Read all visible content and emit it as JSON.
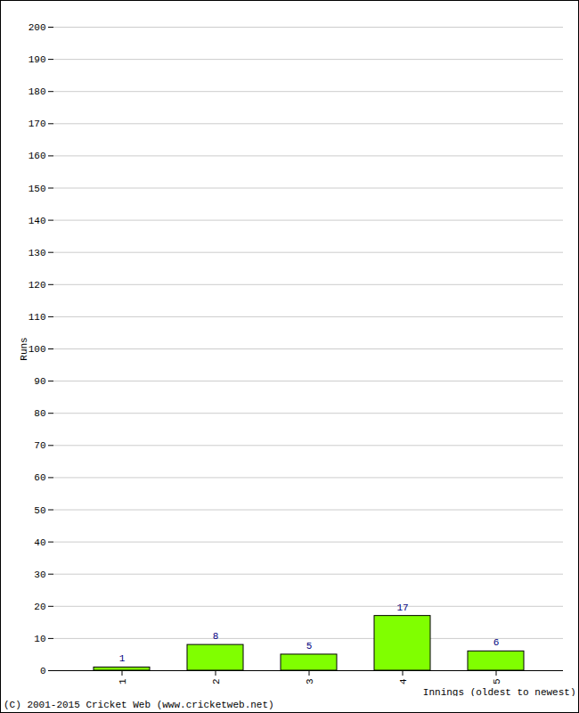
{
  "chart_data": {
    "type": "bar",
    "x_label": "Innings (oldest to newest)",
    "y_label": "Runs",
    "caption": "(C) 2001-2015 Cricket Web (www.cricketweb.net)",
    "categories": [
      "1",
      "2",
      "3",
      "4",
      "5"
    ],
    "values": [
      1,
      8,
      5,
      17,
      6
    ],
    "color": "#80ff00",
    "ylim": [
      0,
      200
    ],
    "yticks": [
      0,
      10,
      20,
      30,
      40,
      50,
      60,
      70,
      80,
      90,
      100,
      110,
      120,
      130,
      140,
      150,
      160,
      170,
      180,
      190,
      200
    ],
    "grid": true,
    "data_labels": true
  }
}
